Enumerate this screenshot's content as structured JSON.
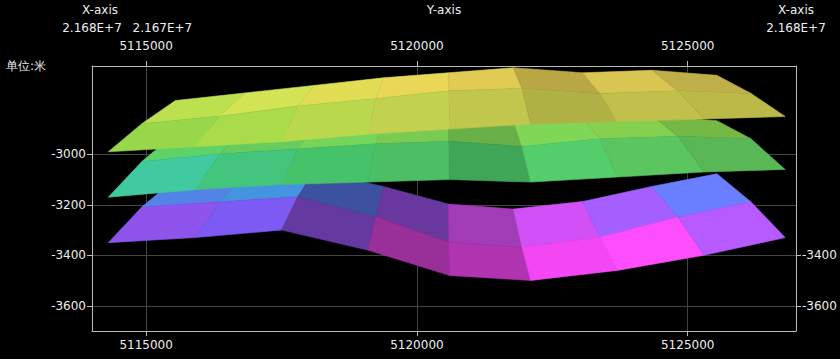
{
  "chart_data": {
    "type": "surface3d",
    "x_axis_title": "X-axis",
    "y_axis_title": "Y-axis",
    "z_axis_title": "单位:米",
    "xlim": [
      21670000,
      21680000
    ],
    "xticks": [
      {
        "value": 21680000,
        "label": "2.168E+7"
      },
      {
        "value": 21670000,
        "label": "2.167E+7"
      }
    ],
    "x2ticks": [
      {
        "value": 21680000,
        "label": "2.168E+7"
      }
    ],
    "ylim": [
      5114000,
      5127000
    ],
    "yticks": [
      5115000,
      5120000,
      5125000
    ],
    "zlim": [
      -3700,
      -2650
    ],
    "zticks": [
      -3600,
      -3400,
      -3200,
      -3000
    ],
    "z2ticks": [
      -3600,
      -3400
    ],
    "grid": true,
    "surface_x": [
      21680000,
      21675000,
      21670000
    ],
    "surface_y": [
      5114300,
      5115900,
      5117500,
      5119100,
      5120600,
      5122100,
      5123700,
      5125300,
      5126800
    ],
    "surfaces": [
      {
        "z": [
          [
            -3350,
            -3330,
            -3300,
            -3380,
            -3480,
            -3500,
            -3460,
            -3400,
            -3330
          ],
          [
            -3260,
            -3240,
            -3220,
            -3300,
            -3400,
            -3420,
            -3380,
            -3300,
            -3240
          ],
          [
            -3200,
            -3180,
            -3170,
            -3230,
            -3300,
            -3320,
            -3290,
            -3230,
            -3180
          ]
        ]
      },
      {
        "z": [
          [
            -3170,
            -3140,
            -3120,
            -3110,
            -3100,
            -3110,
            -3090,
            -3070,
            -3060
          ],
          [
            -3080,
            -3050,
            -3030,
            -3010,
            -3000,
            -3020,
            -2990,
            -2980,
            -2990
          ],
          [
            -3020,
            -3000,
            -2990,
            -2970,
            -2960,
            -2970,
            -2960,
            -2950,
            -2970
          ]
        ]
      },
      {
        "z": [
          [
            -2990,
            -2970,
            -2950,
            -2920,
            -2900,
            -2880,
            -2870,
            -2860,
            -2850
          ],
          [
            -2930,
            -2900,
            -2860,
            -2830,
            -2800,
            -2790,
            -2810,
            -2800,
            -2810
          ],
          [
            -2890,
            -2860,
            -2830,
            -2800,
            -2780,
            -2760,
            -2780,
            -2770,
            -2790
          ]
        ]
      }
    ]
  }
}
